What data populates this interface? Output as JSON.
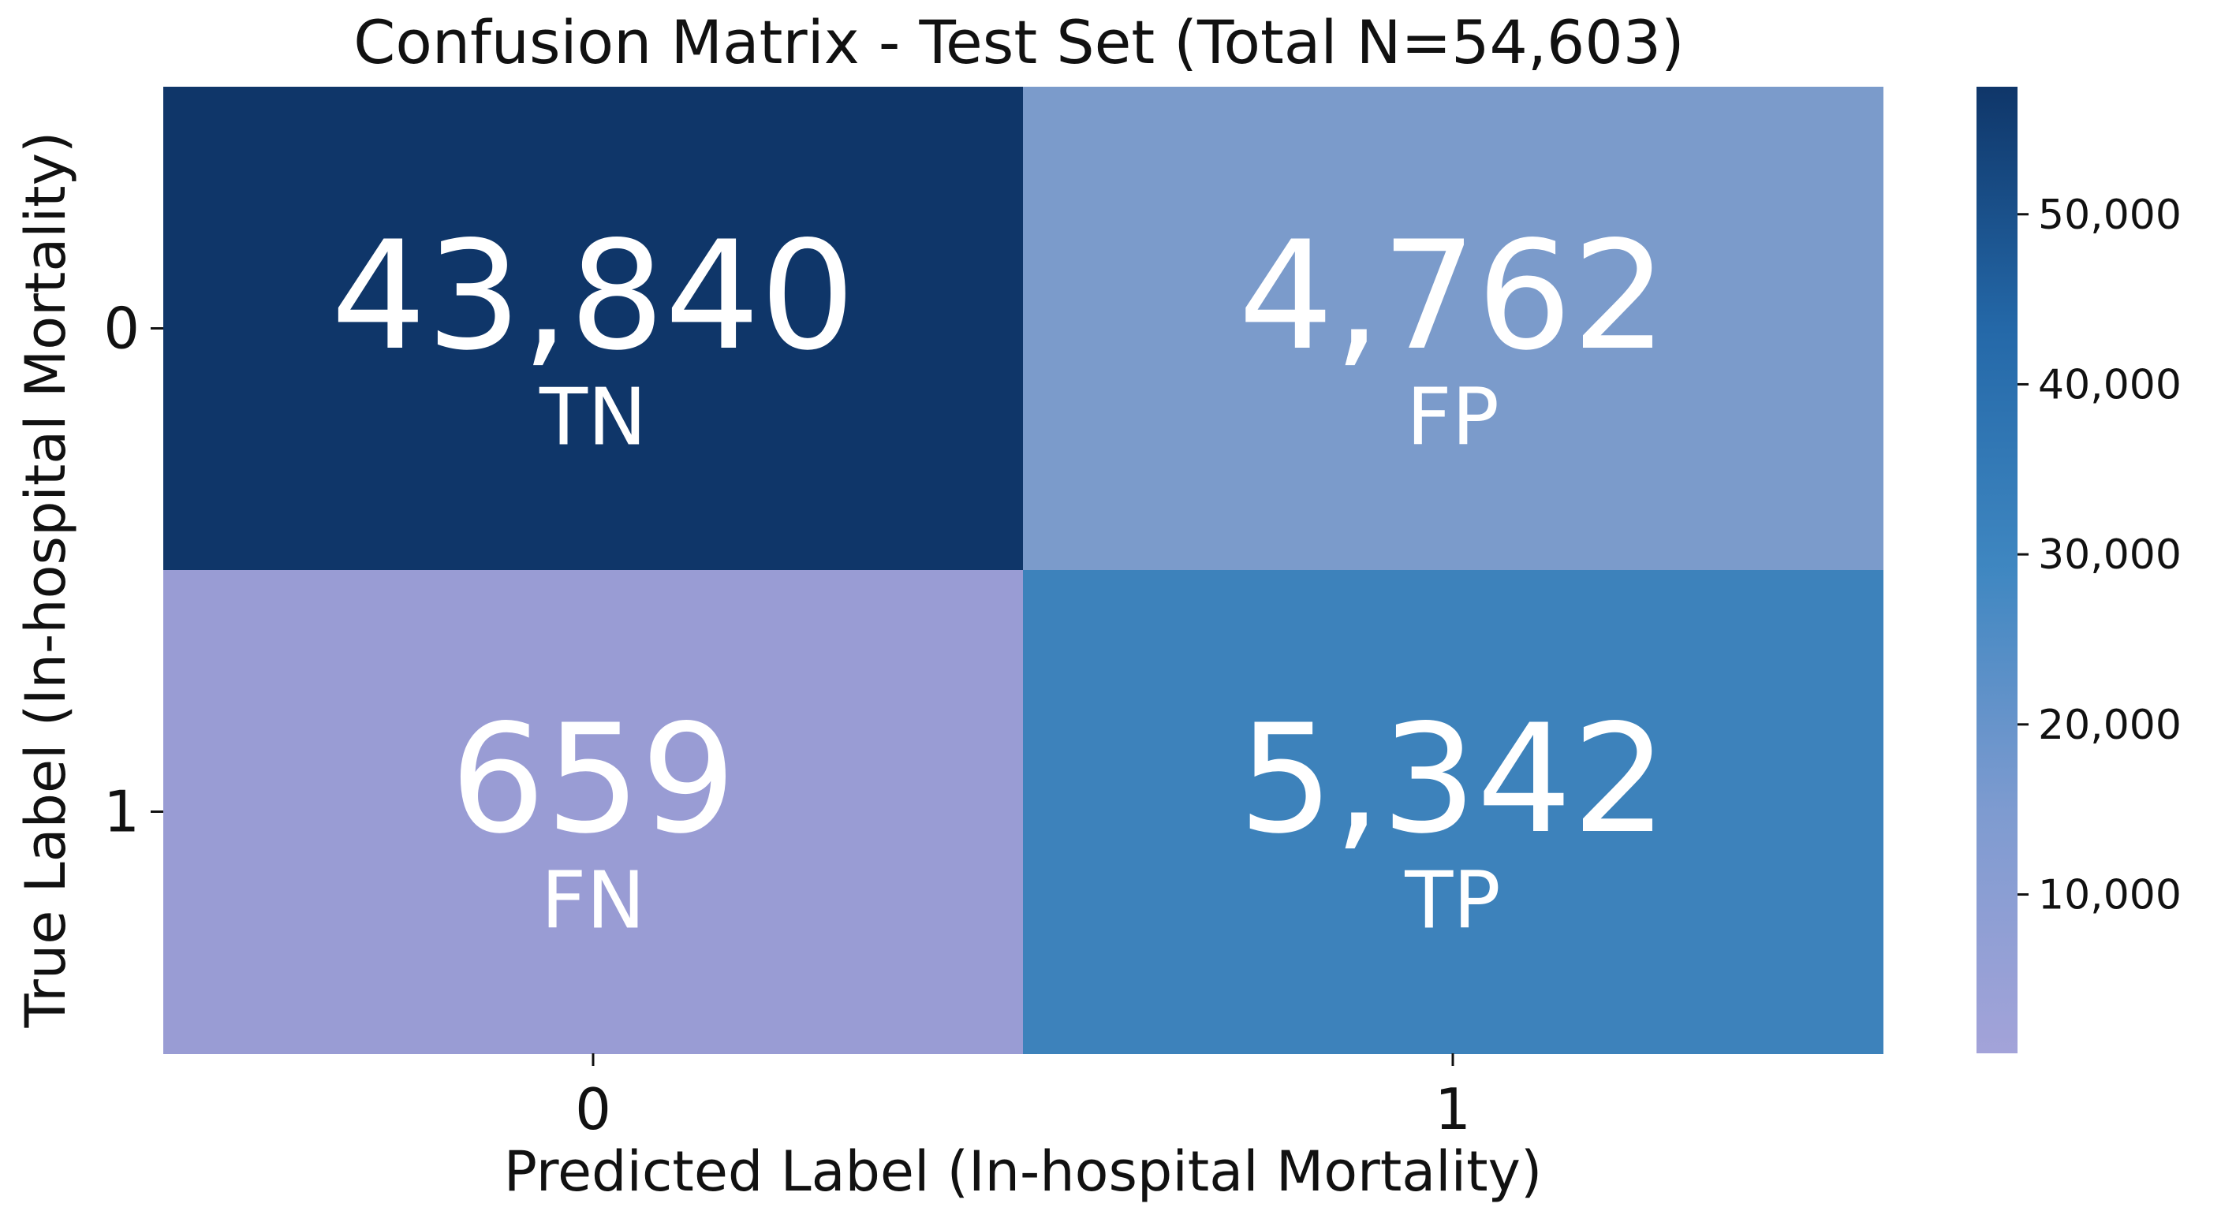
{
  "chart_data": {
    "type": "heatmap",
    "title": "Confusion Matrix - Test Set (Total N=54,603)",
    "xlabel": "Predicted Label (In-hospital Mortality)",
    "ylabel": "True Label (In-hospital Mortality)",
    "x_categories": [
      "0",
      "1"
    ],
    "y_categories": [
      "0",
      "1"
    ],
    "values": [
      [
        43840,
        4762
      ],
      [
        659,
        5342
      ]
    ],
    "value_labels": [
      [
        "43,840",
        "4,762"
      ],
      [
        "659",
        "5,342"
      ]
    ],
    "cell_codes": [
      [
        "TN",
        "FP"
      ],
      [
        "FN",
        "TP"
      ]
    ],
    "colors": [
      [
        "#0f3669",
        "#7b9bcb"
      ],
      [
        "#999cd4",
        "#3d82bb"
      ]
    ],
    "colorbar": {
      "min": 659,
      "max": 57500,
      "ticks": [
        10000,
        20000,
        30000,
        40000,
        50000
      ],
      "tick_labels": [
        "10,000",
        "20,000",
        "30,000",
        "40,000",
        "50,000"
      ],
      "color_stops": [
        "#a3a3d9",
        "#7e9bd0",
        "#3f87c1",
        "#2468a8",
        "#0f3669"
      ]
    }
  }
}
